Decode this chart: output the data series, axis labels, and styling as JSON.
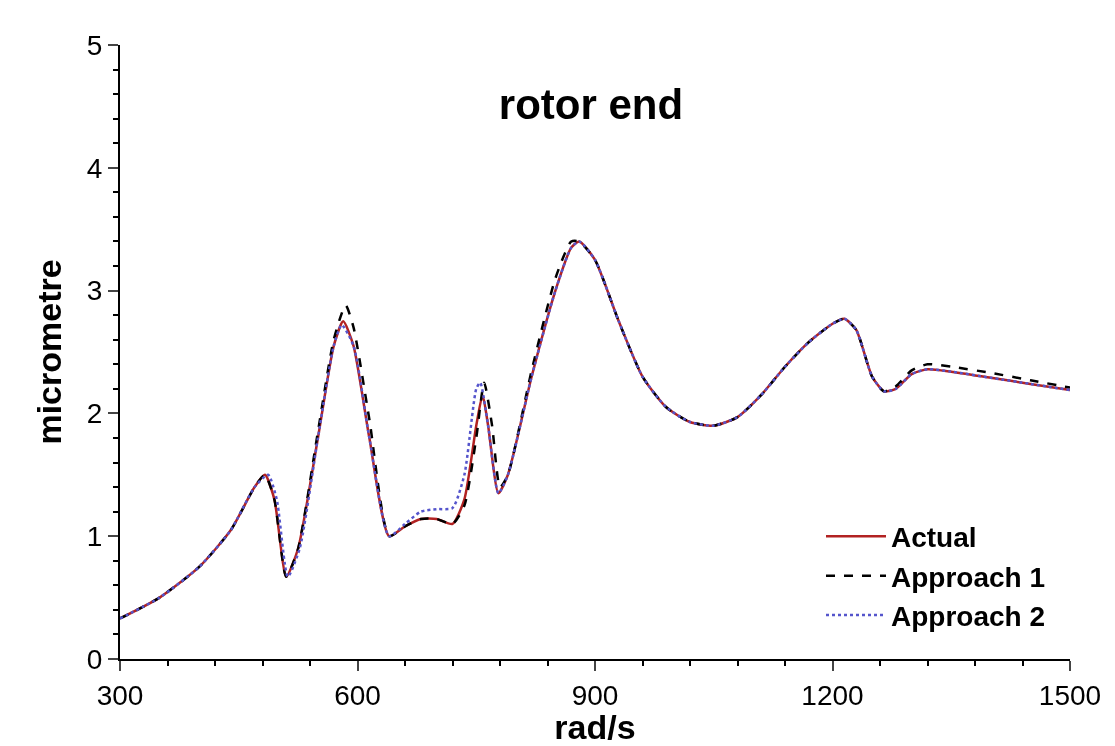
{
  "chart_data": {
    "type": "line",
    "title": "rotor end",
    "xlabel": "rad/s",
    "ylabel": "micrometre",
    "xlim": [
      300,
      1500
    ],
    "xticks": [
      300,
      600,
      900,
      1200,
      1500
    ],
    "ylim": [
      0,
      5
    ],
    "yticks": [
      0,
      1,
      2,
      3,
      4,
      5
    ],
    "legend": "bottom right",
    "marker": "none",
    "series": [
      {
        "name": "Actual",
        "color": "#b22222",
        "line_style": "solid",
        "x": [
          300,
          350,
          400,
          440,
          470,
          483,
          495,
          510,
          525,
          550,
          570,
          582,
          595,
          615,
          640,
          660,
          680,
          700,
          720,
          735,
          750,
          758,
          765,
          778,
          790,
          820,
          850,
          870,
          880,
          900,
          930,
          960,
          990,
          1020,
          1050,
          1080,
          1110,
          1140,
          1170,
          1200,
          1215,
          1230,
          1250,
          1265,
          1280,
          1300,
          1320,
          1350,
          1400,
          1450,
          1500
        ],
        "values": [
          0.33,
          0.5,
          0.75,
          1.05,
          1.4,
          1.5,
          1.3,
          0.67,
          0.9,
          1.8,
          2.55,
          2.75,
          2.55,
          1.8,
          1.0,
          1.08,
          1.14,
          1.14,
          1.1,
          1.3,
          1.9,
          2.15,
          1.9,
          1.35,
          1.5,
          2.3,
          3.0,
          3.35,
          3.4,
          3.25,
          2.75,
          2.3,
          2.05,
          1.93,
          1.9,
          1.97,
          2.15,
          2.38,
          2.58,
          2.73,
          2.77,
          2.68,
          2.3,
          2.18,
          2.2,
          2.32,
          2.36,
          2.34,
          2.29,
          2.24,
          2.19
        ]
      },
      {
        "name": "Approach 1",
        "color": "#000000",
        "line_style": "dashed",
        "x": [
          300,
          350,
          400,
          440,
          470,
          483,
          495,
          510,
          525,
          550,
          570,
          585,
          595,
          615,
          640,
          660,
          680,
          700,
          720,
          735,
          750,
          760,
          770,
          780,
          790,
          820,
          850,
          870,
          880,
          900,
          930,
          960,
          990,
          1020,
          1050,
          1080,
          1110,
          1140,
          1170,
          1200,
          1215,
          1230,
          1250,
          1265,
          1280,
          1300,
          1320,
          1350,
          1400,
          1450,
          1500
        ],
        "values": [
          0.33,
          0.5,
          0.75,
          1.05,
          1.4,
          1.5,
          1.3,
          0.67,
          0.9,
          1.85,
          2.6,
          2.88,
          2.7,
          1.95,
          1.0,
          1.08,
          1.14,
          1.14,
          1.1,
          1.25,
          1.8,
          2.25,
          1.9,
          1.4,
          1.5,
          2.35,
          3.1,
          3.4,
          3.4,
          3.25,
          2.75,
          2.3,
          2.05,
          1.93,
          1.9,
          1.97,
          2.15,
          2.38,
          2.58,
          2.73,
          2.77,
          2.68,
          2.3,
          2.18,
          2.22,
          2.35,
          2.4,
          2.38,
          2.33,
          2.27,
          2.21
        ]
      },
      {
        "name": "Approach 2",
        "color": "#5555cc",
        "line_style": "dotted",
        "x": [
          300,
          350,
          400,
          440,
          470,
          487,
          498,
          512,
          527,
          550,
          570,
          580,
          595,
          615,
          640,
          660,
          680,
          700,
          720,
          735,
          750,
          755,
          765,
          778,
          790,
          820,
          850,
          870,
          880,
          900,
          930,
          960,
          990,
          1020,
          1050,
          1080,
          1110,
          1140,
          1170,
          1200,
          1215,
          1230,
          1250,
          1265,
          1280,
          1300,
          1320,
          1350,
          1400,
          1450,
          1500
        ],
        "values": [
          0.33,
          0.5,
          0.75,
          1.05,
          1.4,
          1.5,
          1.3,
          0.67,
          0.9,
          1.8,
          2.55,
          2.72,
          2.55,
          1.8,
          1.0,
          1.1,
          1.2,
          1.22,
          1.23,
          1.5,
          2.2,
          2.25,
          1.9,
          1.35,
          1.5,
          2.3,
          3.0,
          3.35,
          3.4,
          3.25,
          2.75,
          2.3,
          2.05,
          1.93,
          1.9,
          1.97,
          2.15,
          2.38,
          2.58,
          2.73,
          2.77,
          2.68,
          2.3,
          2.18,
          2.2,
          2.32,
          2.36,
          2.34,
          2.29,
          2.24,
          2.19
        ]
      }
    ]
  }
}
